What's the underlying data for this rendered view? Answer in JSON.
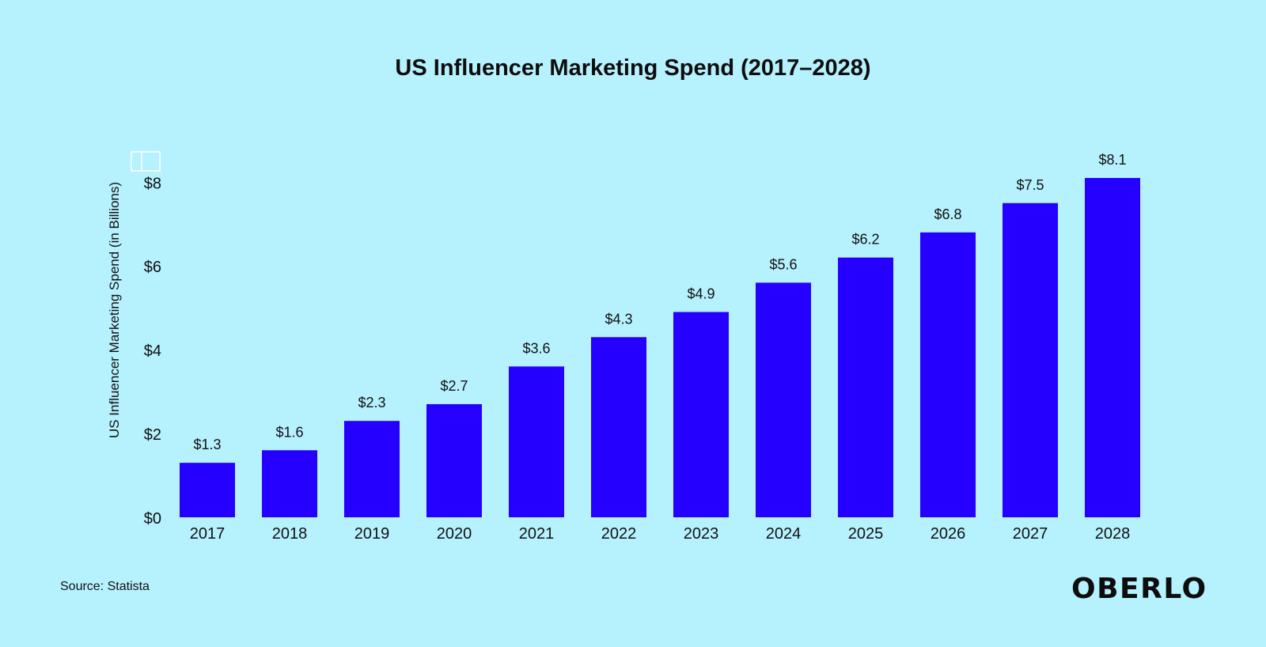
{
  "chart_data": {
    "type": "bar",
    "title": "US Influencer Marketing Spend (2017–2028)",
    "xlabel": "",
    "ylabel": "US Influencer Marketing Spend (in Billions)",
    "categories": [
      "2017",
      "2018",
      "2019",
      "2020",
      "2021",
      "2022",
      "2023",
      "2024",
      "2025",
      "2026",
      "2027",
      "2028"
    ],
    "values": [
      1.3,
      1.6,
      2.3,
      2.7,
      3.6,
      4.3,
      4.9,
      5.6,
      6.2,
      6.8,
      7.5,
      8.1
    ],
    "value_labels": [
      "$1.3",
      "$1.6",
      "$2.3",
      "$2.7",
      "$3.6",
      "$4.3",
      "$4.9",
      "$5.6",
      "$6.2",
      "$6.8",
      "$7.5",
      "$8.1"
    ],
    "ylim": [
      0,
      8.3
    ],
    "yticks": [
      0,
      2,
      4,
      6,
      8
    ],
    "ytick_labels": [
      "$0",
      "$2",
      "$4",
      "$6",
      "$8"
    ],
    "grid": false,
    "legend": "none",
    "bar_color": "#2600ff"
  },
  "footer": {
    "source": "Source: Statista",
    "brand": "OBERLO"
  }
}
